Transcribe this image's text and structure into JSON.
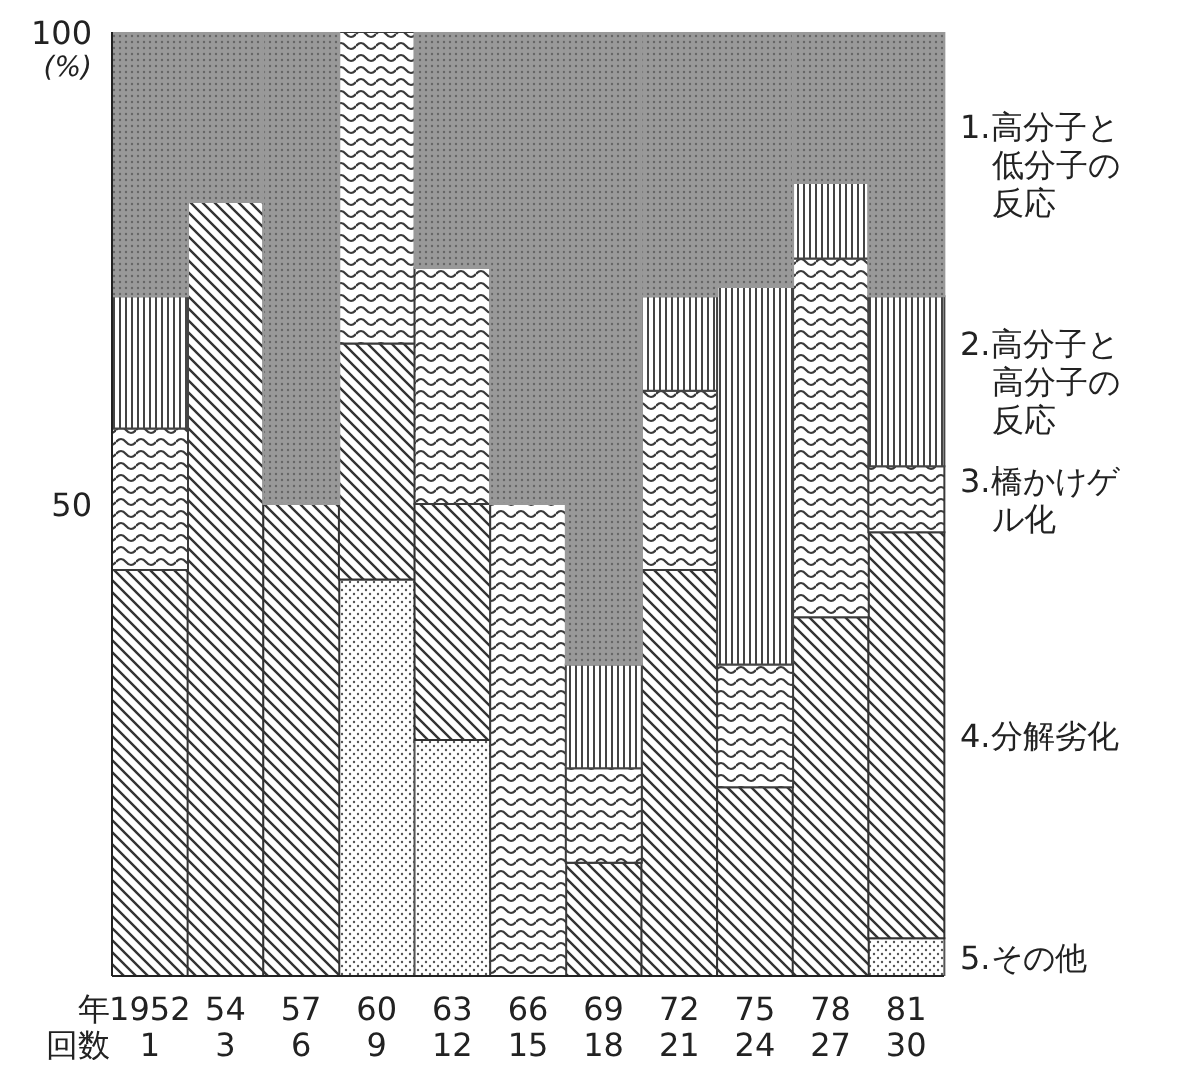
{
  "chart_data": {
    "type": "bar",
    "stacked": true,
    "ylabel": "(%)",
    "annotations": [
      "年",
      "回数"
    ],
    "categories": [
      "1952 1",
      "54 3",
      "57 6",
      "60 9",
      "63 12",
      "66 15",
      "69 18",
      "72 21",
      "75 24",
      "78 27",
      "81 30"
    ],
    "series": [
      {
        "name": "5.その他",
        "color": "#555555",
        "values": [
          0,
          0,
          0,
          42,
          25,
          0,
          0,
          0,
          0,
          0,
          4
        ]
      },
      {
        "name": "4.分解劣化",
        "color": "#333333",
        "values": [
          43,
          82,
          50,
          25,
          25,
          0,
          12,
          43,
          20,
          38,
          43
        ]
      },
      {
        "name": "3.橋かけゲル化",
        "color": "#3a3a3a",
        "values": [
          15,
          0,
          0,
          33,
          25,
          50,
          10,
          19,
          13,
          38,
          7
        ]
      },
      {
        "name": "2.高分子と高分子の反応",
        "color": "#444444",
        "values": [
          14,
          0,
          0,
          0,
          0,
          0,
          11,
          10,
          40,
          8,
          18
        ]
      },
      {
        "name": "1.高分子と低分子の反応",
        "color": "#999999",
        "values": [
          28,
          18,
          50,
          0,
          25,
          50,
          67,
          28,
          27,
          16,
          28
        ]
      }
    ],
    "ylim": [
      0,
      100
    ],
    "yticks": [
      50,
      100
    ]
  }
}
